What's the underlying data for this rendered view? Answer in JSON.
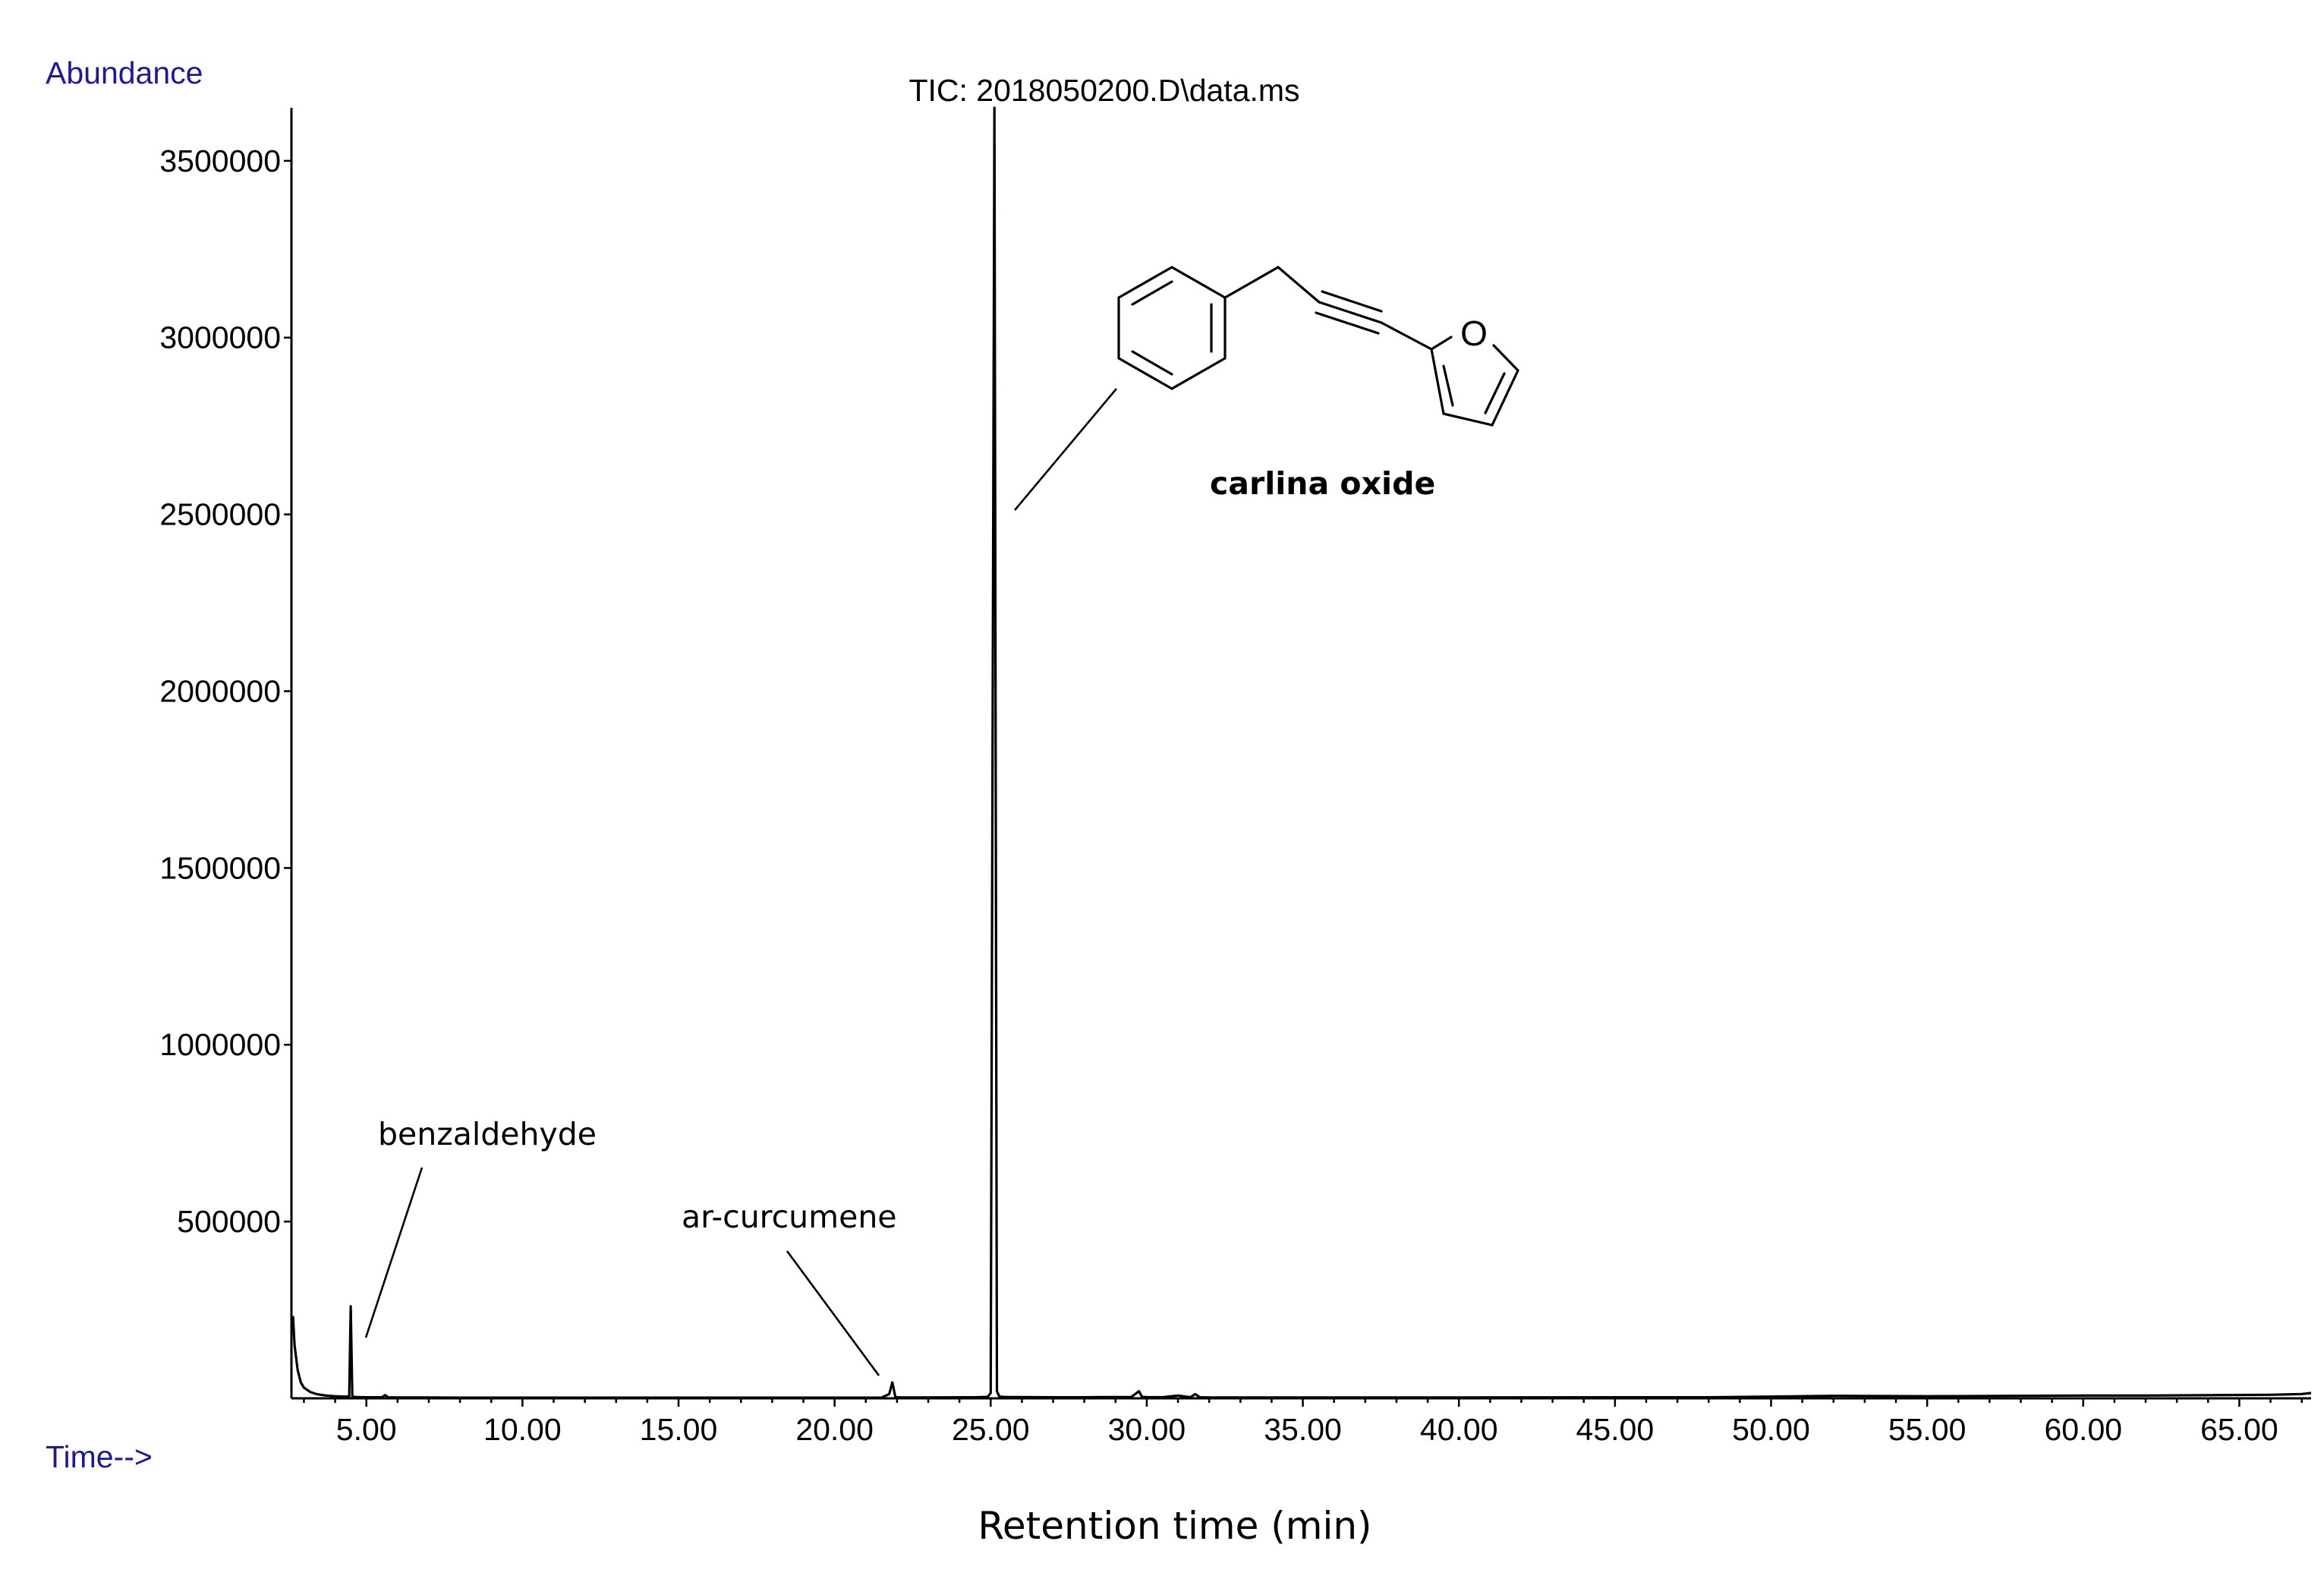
{
  "chart_data": {
    "type": "line",
    "title": "TIC: 2018050200.D\\data.ms",
    "ylabel": "Abundance",
    "xlabel_instrument": "Time-->",
    "xlabel": "Retention time (min)",
    "xlim": [
      2.6,
      67.3
    ],
    "ylim": [
      0,
      3650000
    ],
    "x_ticks": [
      "5.00",
      "10.00",
      "15.00",
      "20.00",
      "25.00",
      "30.00",
      "35.00",
      "40.00",
      "45.00",
      "50.00",
      "55.00",
      "60.00",
      "65.00"
    ],
    "x_tick_values": [
      5,
      10,
      15,
      20,
      25,
      30,
      35,
      40,
      45,
      50,
      55,
      60,
      65
    ],
    "y_ticks": [
      "500000",
      "1000000",
      "1500000",
      "2000000",
      "2500000",
      "3000000",
      "3500000"
    ],
    "y_tick_values": [
      500000,
      1000000,
      1500000,
      2000000,
      2500000,
      3000000,
      3500000
    ],
    "grid": false,
    "series": [
      {
        "x": [
          2.6,
          2.65,
          2.7,
          2.8,
          2.9,
          3.0,
          3.2,
          3.4,
          3.7,
          4.0,
          4.3,
          4.45,
          4.5,
          4.55,
          4.6,
          4.7,
          5.0,
          5.5,
          5.6,
          5.7,
          6.0,
          7.0,
          8.0,
          10.0,
          12.0,
          15.0,
          18.0,
          20.0,
          21.5,
          21.75,
          21.85,
          21.95,
          22.2,
          23.0,
          24.5,
          24.9,
          25.0,
          25.12,
          25.2,
          25.28,
          25.4,
          25.6,
          26.0,
          27.0,
          28.0,
          28.5,
          29.5,
          29.75,
          29.85,
          30.0,
          30.5,
          31.0,
          31.4,
          31.55,
          31.7,
          32.0,
          35.0,
          40.0,
          45.0,
          48.0,
          50.0,
          52.0,
          55.0,
          58.0,
          60.0,
          62.0,
          64.0,
          66.0,
          67.0,
          67.3
        ],
        "values": [
          220000,
          230000,
          150000,
          80000,
          45000,
          30000,
          18000,
          12000,
          8000,
          6000,
          5000,
          5000,
          260000,
          5000,
          4000,
          3500,
          3000,
          3000,
          9000,
          3000,
          2500,
          2500,
          2000,
          2000,
          2000,
          2000,
          2000,
          2000,
          2000,
          12000,
          45000,
          3000,
          2500,
          2500,
          3000,
          4000,
          15000,
          3650000,
          20000,
          5000,
          4000,
          3500,
          3500,
          3000,
          3000,
          3500,
          3500,
          20000,
          4000,
          3500,
          3000,
          8000,
          3000,
          12000,
          3000,
          2500,
          2500,
          2500,
          3000,
          3000,
          5000,
          7000,
          6000,
          7000,
          8000,
          8000,
          9000,
          10000,
          12000,
          15000
        ]
      }
    ],
    "annotations": [
      {
        "text": "benzaldehyde",
        "target_x": 4.5,
        "target_y": 260000
      },
      {
        "text": "ar-curcumene",
        "target_x": 21.85,
        "target_y": 45000
      },
      {
        "text": "carlina oxide",
        "target_x": 25.12,
        "target_y": 3650000,
        "bold": true
      }
    ]
  },
  "molecule": {
    "heteroatom": "O",
    "icon": "carlina-oxide-structure"
  }
}
